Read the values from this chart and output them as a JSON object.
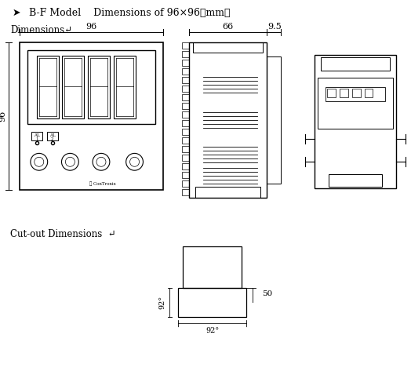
{
  "bg_color": "#ffffff",
  "line_color": "#000000",
  "title_arrow": "→",
  "title_text": "B-F Model    Dimensions of 96×96（mm）",
  "dimensions_label": "Dimensions↵",
  "cutout_label": "Cut-out Dimensions  ↵",
  "dim_96_top": "96",
  "dim_96_left": "96",
  "dim_66": "66",
  "dim_9_5": "9.5",
  "dim_50": "50",
  "dim_92v": "92°",
  "dim_92h": "92°",
  "logo_text": "ConTronix"
}
